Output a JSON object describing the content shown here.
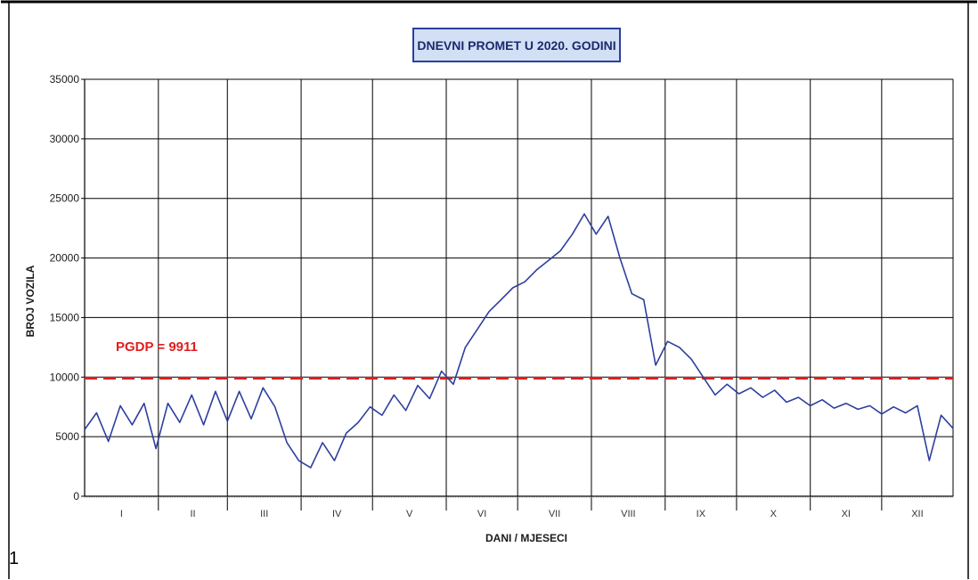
{
  "page": {
    "number": "1"
  },
  "chart_data": {
    "type": "line",
    "title": "DNEVNI PROMET U 2020. GODINI",
    "xlabel": "DANI / MJESECI",
    "ylabel": "BROJ VOZILA",
    "ylim": [
      0,
      35000
    ],
    "yticks": [
      0,
      5000,
      10000,
      15000,
      20000,
      25000,
      30000,
      35000
    ],
    "grid": true,
    "months": [
      "I",
      "II",
      "III",
      "IV",
      "V",
      "VI",
      "VII",
      "VIII",
      "IX",
      "X",
      "XI",
      "XII"
    ],
    "reference_line": {
      "label": "PGDP = 9911",
      "value": 9911
    },
    "series": [
      {
        "x": [
          1,
          6,
          11,
          16,
          21,
          26,
          31,
          36,
          41,
          46,
          51,
          56,
          61,
          66,
          71,
          76,
          81,
          86,
          91,
          96,
          101,
          106,
          111,
          116,
          121,
          126,
          131,
          136,
          141,
          146,
          151,
          156,
          161,
          166,
          171,
          176,
          181,
          186,
          191,
          196,
          201,
          206,
          211,
          216,
          221,
          226,
          231,
          236,
          241,
          246,
          251,
          256,
          261,
          266,
          271,
          276,
          281,
          286,
          291,
          296,
          301,
          306,
          311,
          316,
          321,
          326,
          331,
          336,
          341,
          346,
          351,
          356,
          361,
          366
        ],
        "values": [
          5600,
          7000,
          4600,
          7600,
          6000,
          7800,
          4000,
          7800,
          6200,
          8500,
          6000,
          8800,
          6300,
          8800,
          6500,
          9100,
          7500,
          4500,
          3000,
          2400,
          4500,
          3000,
          5300,
          6200,
          7500,
          6800,
          8500,
          7200,
          9300,
          8200,
          10500,
          9400,
          12500,
          14000,
          15500,
          16500,
          17500,
          18000,
          19000,
          19800,
          20600,
          22000,
          23700,
          22000,
          23500,
          20000,
          17000,
          16500,
          11000,
          13000,
          12500,
          11500,
          10000,
          8500,
          9400,
          8600,
          9100,
          8300,
          8900,
          7900,
          8300,
          7600,
          8100,
          7400,
          7800,
          7300,
          7600,
          6900,
          7500,
          7000,
          7600,
          3000,
          6800,
          5700
        ]
      }
    ]
  }
}
